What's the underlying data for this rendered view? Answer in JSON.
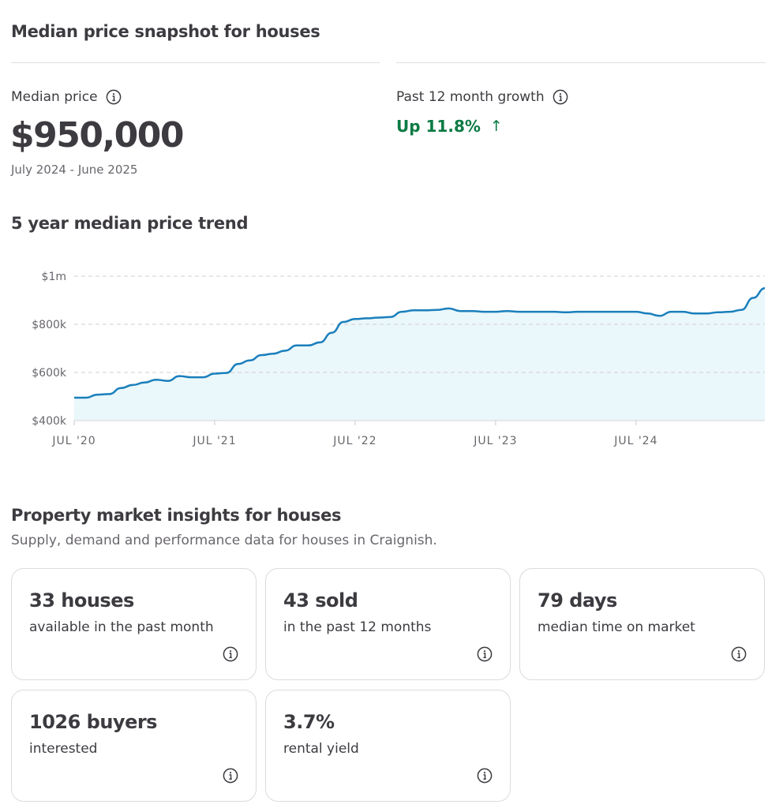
{
  "snapshot": {
    "title": "Median price snapshot for houses",
    "median_label": "Median price",
    "median_value": "$950,000",
    "median_period": "July 2024 - June 2025",
    "growth_label": "Past 12 month growth",
    "growth_value": "Up 11.8%",
    "growth_arrow": "↑",
    "growth_color": "#0c7a44"
  },
  "trend": {
    "title": "5 year median price trend"
  },
  "chart_data": {
    "type": "area",
    "line_color": "#1a7fbb",
    "fill_color": "#eaf7fb",
    "grid": true,
    "ylim": [
      400000,
      1000000
    ],
    "y_ticks": [
      {
        "value": 1000000,
        "label": "$1m"
      },
      {
        "value": 800000,
        "label": "$800k"
      },
      {
        "value": 600000,
        "label": "$600k"
      },
      {
        "value": 400000,
        "label": "$400k"
      }
    ],
    "x_ticks": [
      {
        "value": "2020-07",
        "label": "JUL '20"
      },
      {
        "value": "2021-07",
        "label": "JUL '21"
      },
      {
        "value": "2022-07",
        "label": "JUL '22"
      },
      {
        "value": "2023-07",
        "label": "JUL '23"
      },
      {
        "value": "2024-07",
        "label": "JUL '24"
      }
    ],
    "x_start": "2020-07",
    "x_end": "2025-06",
    "series": [
      {
        "x": [
          "2020-07",
          "2020-08",
          "2020-09",
          "2020-10",
          "2020-11",
          "2020-12",
          "2021-01",
          "2021-02",
          "2021-03",
          "2021-04",
          "2021-05",
          "2021-06",
          "2021-07",
          "2021-08",
          "2021-09",
          "2021-10",
          "2021-11",
          "2021-12",
          "2022-01",
          "2022-02",
          "2022-03",
          "2022-04",
          "2022-05",
          "2022-06",
          "2022-07",
          "2022-08",
          "2022-09",
          "2022-10",
          "2022-11",
          "2022-12",
          "2023-01",
          "2023-02",
          "2023-03",
          "2023-04",
          "2023-05",
          "2023-06",
          "2023-07",
          "2023-08",
          "2023-09",
          "2023-10",
          "2023-11",
          "2023-12",
          "2024-01",
          "2024-02",
          "2024-03",
          "2024-04",
          "2024-05",
          "2024-06",
          "2024-07",
          "2024-08",
          "2024-09",
          "2024-10",
          "2024-11",
          "2024-12",
          "2025-01",
          "2025-02",
          "2025-03",
          "2025-04",
          "2025-05",
          "2025-06"
        ],
        "y": [
          495000,
          495000,
          508000,
          510000,
          535000,
          548000,
          558000,
          570000,
          565000,
          585000,
          580000,
          580000,
          595000,
          598000,
          635000,
          650000,
          672000,
          678000,
          690000,
          712000,
          712000,
          725000,
          765000,
          810000,
          822000,
          825000,
          828000,
          830000,
          852000,
          858000,
          858000,
          860000,
          866000,
          855000,
          855000,
          852000,
          852000,
          855000,
          852000,
          852000,
          852000,
          852000,
          850000,
          852000,
          852000,
          852000,
          852000,
          852000,
          852000,
          845000,
          835000,
          852000,
          852000,
          845000,
          845000,
          850000,
          852000,
          860000,
          910000,
          950000
        ]
      }
    ]
  },
  "insights": {
    "title": "Property market insights for houses",
    "subtitle": "Supply, demand and performance data for houses in Craignish.",
    "cards": [
      {
        "value": "33 houses",
        "desc": "available in the past month"
      },
      {
        "value": "43 sold",
        "desc": "in the past 12 months"
      },
      {
        "value": "79 days",
        "desc": "median time on market"
      },
      {
        "value": "1026 buyers",
        "desc": "interested"
      },
      {
        "value": "3.7%",
        "desc": "rental yield"
      }
    ]
  }
}
